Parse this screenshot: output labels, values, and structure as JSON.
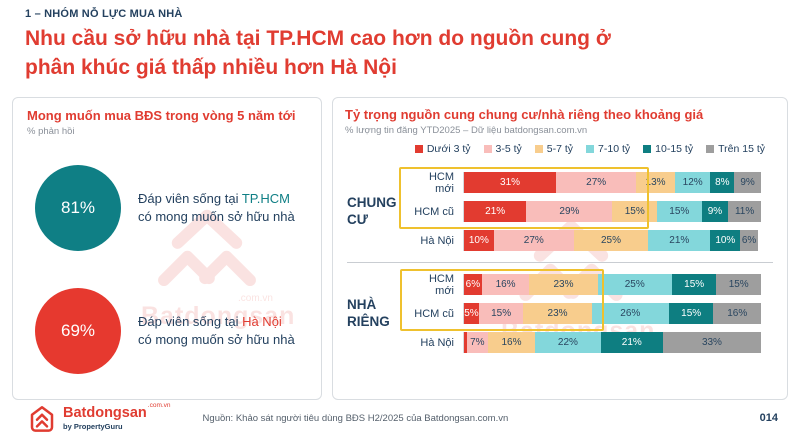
{
  "page": {
    "kicker": "1 – NHÓM NỖ LỰC MUA NHÀ",
    "title_lines": [
      "Nhu cầu sở hữu nhà tại TP.HCM cao hơn do nguồn cung ở",
      "phân khúc giá thấp nhiều hơn Hà Nội"
    ],
    "source": "Nguồn: Khảo sát người tiêu dùng BĐS H2/2025 của Batdongsan.com.vn",
    "page_number": "014"
  },
  "footer_logo": {
    "brand": "Batdongsan",
    "domain": ".com.vn",
    "byline": "by PropertyGuru"
  },
  "watermark": {
    "brand": "Batdongsan",
    "domain": ".com.vn"
  },
  "left_panel": {
    "title": "Mong muốn mua BĐS trong vòng 5 năm tới",
    "subtitle": "% phản hồi",
    "stats": [
      {
        "value": "81%",
        "color": "#0F7F85",
        "prefix": "Đáp viên sống tại",
        "city": "TP.HCM",
        "city_color": "#0F7F85",
        "suffix": "có mong muốn sở hữu nhà"
      },
      {
        "value": "69%",
        "color": "#E6392F",
        "prefix": "Đáp viên sống tại",
        "city": "Hà Nội",
        "city_color": "#E03C31",
        "suffix": "có mong muốn sở hữu nhà"
      }
    ]
  },
  "right_panel": {
    "title": "Tỷ trọng nguồn cung chung cư/nhà riêng theo khoảng giá",
    "subtitle": "% lượng tin đăng YTD2025 – Dữ liệu batdongsan.com.vn"
  },
  "chart_data": {
    "type": "bar",
    "orientation": "horizontal",
    "stacked": true,
    "unit": "%",
    "xlim": [
      0,
      100
    ],
    "title": "Tỷ trọng nguồn cung chung cư/nhà riêng theo khoảng giá",
    "legend_position": "top-right",
    "legend": [
      {
        "label": "Dưới 3 tỷ",
        "color": "#E23B30",
        "text_color": "#FFFFFF"
      },
      {
        "label": "3-5 tỷ",
        "color": "#F9BDBA",
        "text_color": "#2A4660"
      },
      {
        "label": "5-7 tỷ",
        "color": "#F8CD8D",
        "text_color": "#2A4660"
      },
      {
        "label": "7-10 tỷ",
        "color": "#83D7DB",
        "text_color": "#2A4660"
      },
      {
        "label": "10-15 tỷ",
        "color": "#0E7E81",
        "text_color": "#FFFFFF"
      },
      {
        "label": "Trên 15 tỷ",
        "color": "#9E9E9E",
        "text_color": "#2A4660"
      }
    ],
    "groups": [
      {
        "label": "CHUNG CƯ",
        "rows": [
          {
            "label": "HCM mới",
            "values": [
              31,
              27,
              13,
              12,
              8,
              9
            ]
          },
          {
            "label": "HCM cũ",
            "values": [
              21,
              29,
              15,
              15,
              9,
              11
            ]
          },
          {
            "label": "Hà Nội",
            "values": [
              10,
              27,
              25,
              21,
              10,
              6
            ]
          }
        ],
        "highlighted_rows": [
          0,
          1
        ]
      },
      {
        "label": "NHÀ RIÊNG",
        "rows": [
          {
            "label": "HCM mới",
            "values": [
              6,
              16,
              23,
              25,
              15,
              15
            ]
          },
          {
            "label": "HCM cũ",
            "values": [
              5,
              15,
              23,
              26,
              15,
              16
            ]
          },
          {
            "label": "Hà Nội",
            "values": [
              1,
              7,
              16,
              22,
              21,
              33
            ]
          }
        ],
        "highlighted_rows": [
          0,
          1
        ]
      }
    ],
    "highlight_color": "#EFC12E"
  }
}
